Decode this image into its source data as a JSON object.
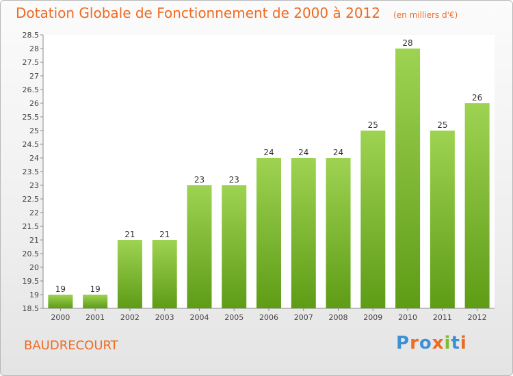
{
  "title": "Dotation Globale de Fonctionnement de 2000 à 2012",
  "unit": "(en milliers d'€)",
  "commune": "BAUDRECOURT",
  "brand": "Proxiti",
  "colors": {
    "accent": "#ee6a22",
    "bar_top": "#9ed352",
    "bar_bottom": "#5e9c16"
  },
  "chart_data": {
    "type": "bar",
    "title": "Dotation Globale de Fonctionnement de 2000 à 2012",
    "subtitle": "(en milliers d'€)",
    "categories": [
      "2000",
      "2001",
      "2002",
      "2003",
      "2004",
      "2005",
      "2006",
      "2007",
      "2008",
      "2009",
      "2010",
      "2011",
      "2012"
    ],
    "values": [
      19,
      19,
      21,
      21,
      23,
      23,
      24,
      24,
      24,
      25,
      28,
      25,
      26
    ],
    "data_labels": [
      "19",
      "19",
      "21",
      "21",
      "23",
      "23",
      "24",
      "24",
      "24",
      "25",
      "28",
      "25",
      "26"
    ],
    "yticks": [
      "18.5",
      "19",
      "19.5",
      "20",
      "20.5",
      "21",
      "21.5",
      "22",
      "22.5",
      "23",
      "23.5",
      "24",
      "24.5",
      "25",
      "25.5",
      "26",
      "26.5",
      "27",
      "27.5",
      "28",
      "28.5"
    ],
    "ylim": [
      18.5,
      28.5
    ],
    "xlabel": "",
    "ylabel": "",
    "grid": false,
    "legend": "none"
  }
}
